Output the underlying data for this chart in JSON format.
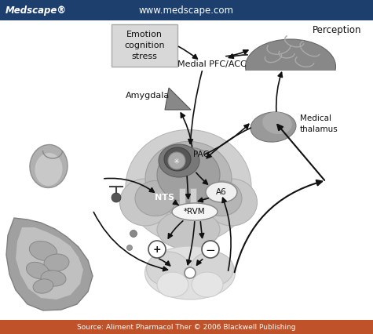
{
  "header_bg": "#1c3f6e",
  "header_text_left": "Medscape®",
  "header_text_center": "www.medscape.com",
  "footer_text": "Source: Aliment Pharmacol Ther © 2006 Blackwell Publishing",
  "footer_bg": "#c0522a",
  "bg_color": "#ffffff",
  "labels": {
    "emotion_box": "Emotion\ncognition\nstress",
    "medial_pfc": "Medial PFC/ACC",
    "perception": "Perception",
    "amygdala": "Amygdala",
    "medical_thalamus": "Medical\nthalamus",
    "PAG": "PAG",
    "A6": "A6",
    "NTS": "NTS",
    "RVM": "*RVM",
    "plus": "+",
    "minus": "−"
  },
  "colors": {
    "arrow_color": "#111111",
    "emotion_box_bg": "#d8d8d8",
    "emotion_box_edge": "#aaaaaa"
  }
}
